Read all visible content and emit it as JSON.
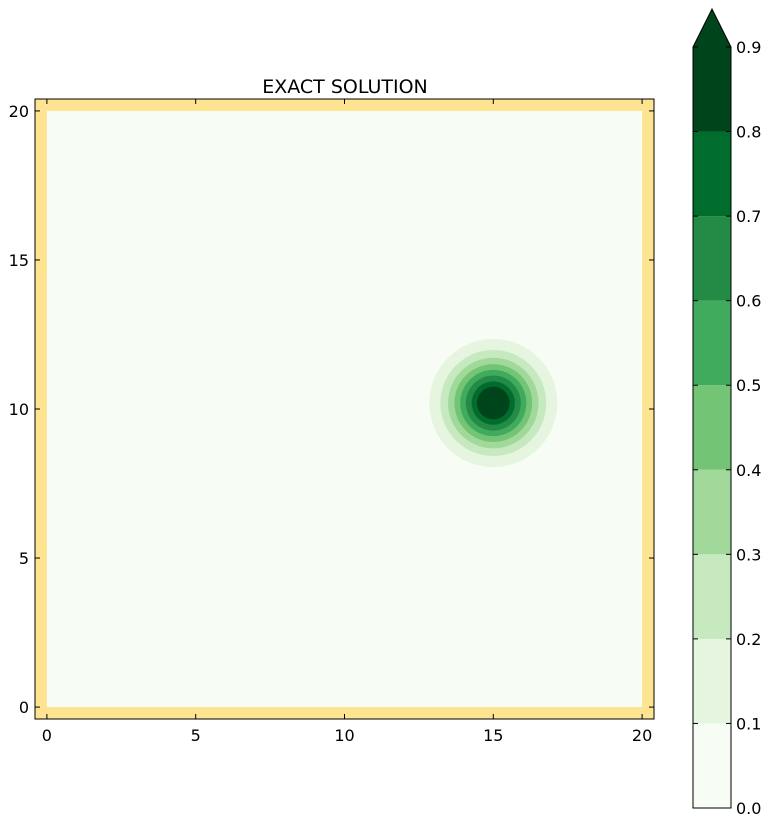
{
  "chart_data": {
    "type": "contour",
    "title": "EXACT SOLUTION",
    "xlabel": "",
    "ylabel": "",
    "xlim": [
      -0.4,
      20.4
    ],
    "ylim": [
      -0.4,
      20.4
    ],
    "x_ticks": [
      0,
      5,
      10,
      15,
      20
    ],
    "x_tick_labels": [
      "0",
      "5",
      "10",
      "15",
      "20"
    ],
    "y_ticks": [
      0,
      5,
      10,
      15,
      20
    ],
    "y_tick_labels": [
      "0",
      "5",
      "10",
      "15",
      "20"
    ],
    "data_extent": {
      "x": [
        0,
        20
      ],
      "y": [
        0,
        20
      ]
    },
    "boundary_color": "#fee391",
    "field": {
      "shape": "gaussian_bump",
      "center_x": 15,
      "center_y": 10.2,
      "peak_value": 0.9,
      "outer_contour_radius": 2.15
    },
    "contour_levels": [
      0.0,
      0.1,
      0.2,
      0.3,
      0.4,
      0.5,
      0.6,
      0.7,
      0.8,
      0.9
    ],
    "level_colors": [
      "#f7fcf5",
      "#e5f5e0",
      "#c7e9c0",
      "#a1d99b",
      "#74c476",
      "#41ab5d",
      "#238b45",
      "#006d2c",
      "#00441b"
    ],
    "extend_color": "#00441b",
    "colorbar": {
      "ticks": [
        "0.0",
        "0.1",
        "0.2",
        "0.3",
        "0.4",
        "0.5",
        "0.6",
        "0.7",
        "0.8",
        "0.9"
      ],
      "extend": "max",
      "placement": "right"
    }
  }
}
